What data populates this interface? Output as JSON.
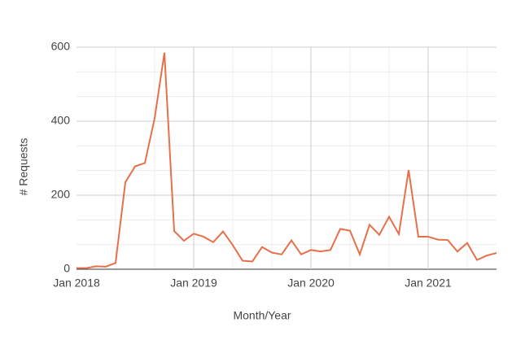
{
  "chart_data": {
    "type": "line",
    "x_label": "Month/Year",
    "y_label": "# Requests",
    "x": [
      "Jan 2018",
      "Feb 2018",
      "Mar 2018",
      "Apr 2018",
      "May 2018",
      "Jun 2018",
      "Jul 2018",
      "Aug 2018",
      "Sep 2018",
      "Oct 2018",
      "Nov 2018",
      "Dec 2018",
      "Jan 2019",
      "Feb 2019",
      "Mar 2019",
      "Apr 2019",
      "May 2019",
      "Jun 2019",
      "Jul 2019",
      "Aug 2019",
      "Sep 2019",
      "Oct 2019",
      "Nov 2019",
      "Dec 2019",
      "Jan 2020",
      "Feb 2020",
      "Mar 2020",
      "Apr 2020",
      "May 2020",
      "Jun 2020",
      "Jul 2020",
      "Aug 2020",
      "Sep 2020",
      "Oct 2020",
      "Nov 2020",
      "Dec 2020",
      "Jan 2021",
      "Feb 2021",
      "Mar 2021",
      "Apr 2021",
      "May 2021",
      "Jun 2021",
      "Jul 2021",
      "Aug 2021"
    ],
    "values": [
      3,
      3,
      8,
      7,
      17,
      235,
      278,
      287,
      408,
      585,
      103,
      77,
      96,
      88,
      73,
      102,
      65,
      23,
      21,
      60,
      45,
      40,
      78,
      40,
      52,
      48,
      52,
      109,
      104,
      40,
      120,
      93,
      142,
      95,
      268,
      88,
      88,
      80,
      79,
      48,
      71,
      25,
      37,
      44
    ],
    "color": "#e5704a",
    "xticks": [
      "Jan 2018",
      "Jan 2019",
      "Jan 2020",
      "Jan 2021"
    ],
    "ylim": [
      0,
      600
    ],
    "yticks": [
      0,
      200,
      400,
      600
    ],
    "grid": true
  }
}
